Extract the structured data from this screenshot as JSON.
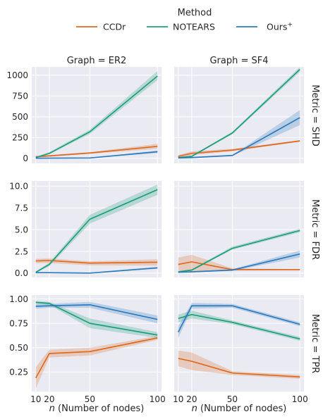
{
  "legend": {
    "title": "Method",
    "items": [
      {
        "label": "CCDr",
        "color": "#dd6b22"
      },
      {
        "label": "NOTEARS",
        "color": "#1fa07a"
      },
      {
        "label": "Ours",
        "sup": "+",
        "color": "#2c7bbf"
      }
    ]
  },
  "col_titles": [
    "Graph = ER2",
    "Graph = SF4"
  ],
  "row_titles": [
    "Metric = SHD",
    "Metric = FDR",
    "Metric = TPR"
  ],
  "xlabel_italic": "n",
  "xlabel_rest": " (Number of nodes)",
  "chart_data": {
    "type": "line",
    "x": [
      10,
      20,
      50,
      100
    ],
    "xlim": [
      7,
      103
    ],
    "xticks": [
      "10",
      "20",
      "50",
      "100"
    ],
    "grid": true,
    "legend_position": "top",
    "rows": [
      {
        "metric": "SHD",
        "ylim": [
          -60,
          1100
        ],
        "yticks": [
          0,
          250,
          500,
          750,
          1000
        ],
        "tick_labels": [
          "0",
          "250",
          "500",
          "750",
          "1000"
        ]
      },
      {
        "metric": "FDR",
        "ylim": [
          -0.5,
          10.6
        ],
        "yticks": [
          0,
          2.5,
          5,
          7.5,
          10
        ],
        "tick_labels": [
          "0.0",
          "2.5",
          "5.0",
          "7.5",
          "10.0"
        ]
      },
      {
        "metric": "TPR",
        "ylim": [
          0.05,
          1.04
        ],
        "yticks": [
          0.25,
          0.5,
          0.75,
          1.0
        ],
        "tick_labels": [
          "0.25",
          "0.50",
          "0.75",
          "1.00"
        ]
      }
    ],
    "panels": [
      {
        "graph": "ER2",
        "metric": "SHD",
        "series": [
          {
            "name": "CCDr",
            "values": [
              20,
              30,
              65,
              145
            ],
            "lower": [
              10,
              20,
              55,
              115
            ],
            "upper": [
              30,
              40,
              75,
              175
            ]
          },
          {
            "name": "NOTEARS",
            "values": [
              10,
              60,
              320,
              990
            ],
            "lower": [
              5,
              50,
              295,
              940
            ],
            "upper": [
              15,
              75,
              345,
              1050
            ]
          },
          {
            "name": "Ours+",
            "values": [
              2,
              3,
              5,
              80
            ],
            "lower": [
              0,
              1,
              3,
              65
            ],
            "upper": [
              4,
              5,
              7,
              95
            ]
          }
        ]
      },
      {
        "graph": "SF4",
        "metric": "SHD",
        "series": [
          {
            "name": "CCDr",
            "values": [
              25,
              60,
              100,
              210
            ],
            "lower": [
              10,
              40,
              85,
              200
            ],
            "upper": [
              40,
              85,
              115,
              220
            ]
          },
          {
            "name": "NOTEARS",
            "values": [
              10,
              25,
              305,
              1070
            ],
            "lower": [
              5,
              15,
              290,
              1040
            ],
            "upper": [
              15,
              35,
              320,
              1100
            ]
          },
          {
            "name": "Ours+",
            "values": [
              5,
              10,
              35,
              490
            ],
            "lower": [
              3,
              5,
              30,
              400
            ],
            "upper": [
              7,
              15,
              40,
              580
            ]
          }
        ]
      },
      {
        "graph": "ER2",
        "metric": "FDR",
        "series": [
          {
            "name": "CCDr",
            "values": [
              1.4,
              1.45,
              1.15,
              1.25
            ],
            "lower": [
              1.15,
              1.15,
              0.9,
              0.85
            ],
            "upper": [
              1.65,
              1.7,
              1.35,
              1.6
            ]
          },
          {
            "name": "NOTEARS",
            "values": [
              0.1,
              1.0,
              6.2,
              9.6
            ],
            "lower": [
              0.0,
              0.8,
              5.7,
              9.0
            ],
            "upper": [
              0.2,
              1.2,
              6.7,
              10.2
            ]
          },
          {
            "name": "Ours+",
            "values": [
              0.05,
              0.05,
              0.0,
              0.6
            ],
            "lower": [
              0.0,
              0.0,
              0.0,
              0.5
            ],
            "upper": [
              0.1,
              0.1,
              0.05,
              0.75
            ]
          }
        ]
      },
      {
        "graph": "SF4",
        "metric": "FDR",
        "series": [
          {
            "name": "CCDr",
            "values": [
              1.0,
              1.3,
              0.4,
              0.4
            ],
            "lower": [
              0.0,
              0.2,
              0.3,
              0.35
            ],
            "upper": [
              1.8,
              2.1,
              0.55,
              0.45
            ]
          },
          {
            "name": "NOTEARS",
            "values": [
              0.15,
              0.35,
              2.85,
              4.9
            ],
            "lower": [
              0.1,
              0.25,
              2.7,
              4.7
            ],
            "upper": [
              0.2,
              0.45,
              3.05,
              5.1
            ]
          },
          {
            "name": "Ours+",
            "values": [
              0.1,
              0.15,
              0.35,
              2.2
            ],
            "lower": [
              0.05,
              0.1,
              0.25,
              1.8
            ],
            "upper": [
              0.15,
              0.2,
              0.45,
              2.6
            ]
          }
        ]
      },
      {
        "graph": "ER2",
        "metric": "TPR",
        "series": [
          {
            "name": "CCDr",
            "values": [
              0.19,
              0.44,
              0.46,
              0.6
            ],
            "lower": [
              0.08,
              0.4,
              0.42,
              0.58
            ],
            "upper": [
              0.3,
              0.48,
              0.5,
              0.62
            ]
          },
          {
            "name": "NOTEARS",
            "values": [
              0.965,
              0.955,
              0.75,
              0.63
            ],
            "lower": [
              0.95,
              0.94,
              0.7,
              0.6
            ],
            "upper": [
              0.98,
              0.97,
              0.8,
              0.66
            ]
          },
          {
            "name": "Ours+",
            "values": [
              0.925,
              0.93,
              0.94,
              0.79
            ],
            "lower": [
              0.9,
              0.91,
              0.91,
              0.75
            ],
            "upper": [
              0.95,
              0.95,
              0.97,
              0.83
            ]
          }
        ]
      },
      {
        "graph": "SF4",
        "metric": "TPR",
        "series": [
          {
            "name": "CCDr",
            "values": [
              0.39,
              0.36,
              0.24,
              0.2
            ],
            "lower": [
              0.31,
              0.27,
              0.22,
              0.18
            ],
            "upper": [
              0.47,
              0.45,
              0.26,
              0.22
            ]
          },
          {
            "name": "NOTEARS",
            "values": [
              0.8,
              0.84,
              0.76,
              0.59
            ],
            "lower": [
              0.76,
              0.8,
              0.74,
              0.57
            ],
            "upper": [
              0.84,
              0.88,
              0.78,
              0.61
            ]
          },
          {
            "name": "Ours+",
            "values": [
              0.66,
              0.93,
              0.93,
              0.74
            ],
            "lower": [
              0.6,
              0.9,
              0.91,
              0.72
            ],
            "upper": [
              0.72,
              0.96,
              0.95,
              0.76
            ]
          }
        ]
      }
    ]
  }
}
